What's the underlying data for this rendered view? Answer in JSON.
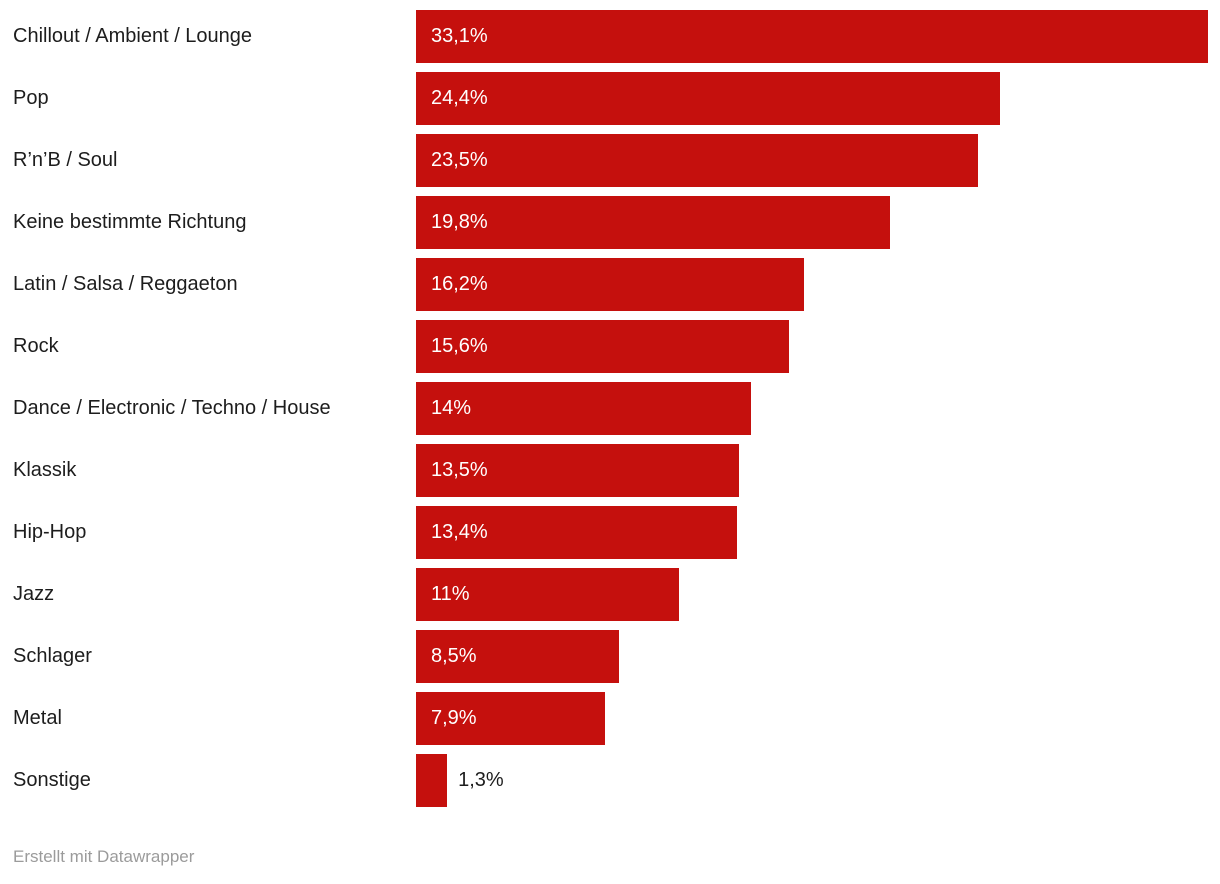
{
  "chart_data": {
    "type": "bar",
    "orientation": "horizontal",
    "title": "",
    "xlabel": "",
    "ylabel": "",
    "xlim": [
      0,
      33.1
    ],
    "grid": false,
    "legend": false,
    "bar_color": "#c5100d",
    "categories": [
      "Chillout / Ambient / Lounge",
      "Pop",
      "R’n’B / Soul",
      "Keine bestimmte Richtung",
      "Latin / Salsa / Reggaeton",
      "Rock",
      "Dance / Electronic / Techno / House",
      "Klassik",
      "Hip-Hop",
      "Jazz",
      "Schlager",
      "Metal",
      "Sonstige"
    ],
    "values": [
      33.1,
      24.4,
      23.5,
      19.8,
      16.2,
      15.6,
      14,
      13.5,
      13.4,
      11,
      8.5,
      7.9,
      1.3
    ],
    "value_labels": [
      "33,1%",
      "24,4%",
      "23,5%",
      "19,8%",
      "16,2%",
      "15,6%",
      "14%",
      "13,5%",
      "13,4%",
      "11%",
      "8,5%",
      "7,9%",
      "1,3%"
    ]
  },
  "footer": {
    "credit": "Erstellt mit Datawrapper"
  },
  "colors": {
    "bar": "#c5100d",
    "label_text": "#1d1d1d",
    "value_text_inside": "#ffffff",
    "value_text_outside": "#1d1d1d",
    "credit_text": "#9b9b9b",
    "background": "#ffffff"
  }
}
